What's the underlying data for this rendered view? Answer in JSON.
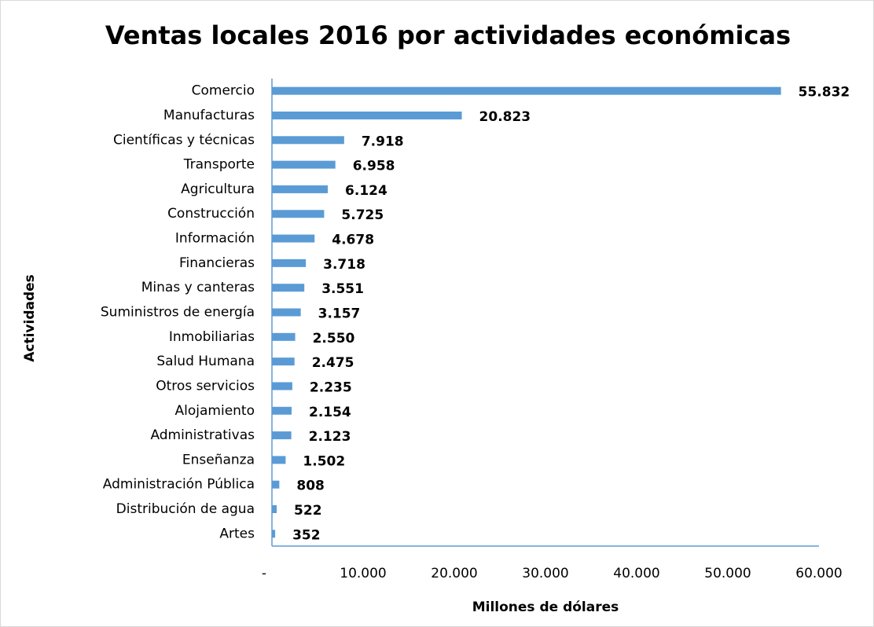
{
  "chart_data": {
    "type": "bar",
    "orientation": "horizontal",
    "title": "Ventas locales 2016 por actividades económicas",
    "x_axis_label": "Millones de dólares",
    "y_axis_label": "Actividades",
    "categories": [
      "Comercio",
      "Manufacturas",
      "Científicas y técnicas",
      "Transporte",
      "Agricultura",
      "Construcción",
      "Información",
      "Financieras",
      "Minas y canteras",
      "Suministros de energía",
      "Inmobiliarias",
      "Salud Humana",
      "Otros servicios",
      "Alojamiento",
      "Administrativas",
      "Enseñanza",
      "Administración Pública",
      "Distribución de agua",
      "Artes"
    ],
    "values": [
      55832,
      20823,
      7918,
      6958,
      6124,
      5725,
      4678,
      3718,
      3551,
      3157,
      2550,
      2475,
      2235,
      2154,
      2123,
      1502,
      808,
      522,
      352
    ],
    "value_labels": [
      "55.832",
      "20.823",
      "7.918",
      "6.958",
      "6.124",
      "5.725",
      "4.678",
      "3.718",
      "3.551",
      "3.157",
      "2.550",
      "2.475",
      "2.235",
      "2.154",
      "2.123",
      "1.502",
      "808",
      "522",
      "352"
    ],
    "color": "#5b9bd5",
    "xlim": [
      0,
      60000
    ],
    "xticks": [
      {
        "value": 0,
        "label": "-"
      },
      {
        "value": 10000,
        "label": "10.000"
      },
      {
        "value": 20000,
        "label": "20.000"
      },
      {
        "value": 30000,
        "label": "30.000"
      },
      {
        "value": 40000,
        "label": "40.000"
      },
      {
        "value": 50000,
        "label": "50.000"
      },
      {
        "value": 60000,
        "label": "60.000"
      }
    ],
    "grid": false
  }
}
